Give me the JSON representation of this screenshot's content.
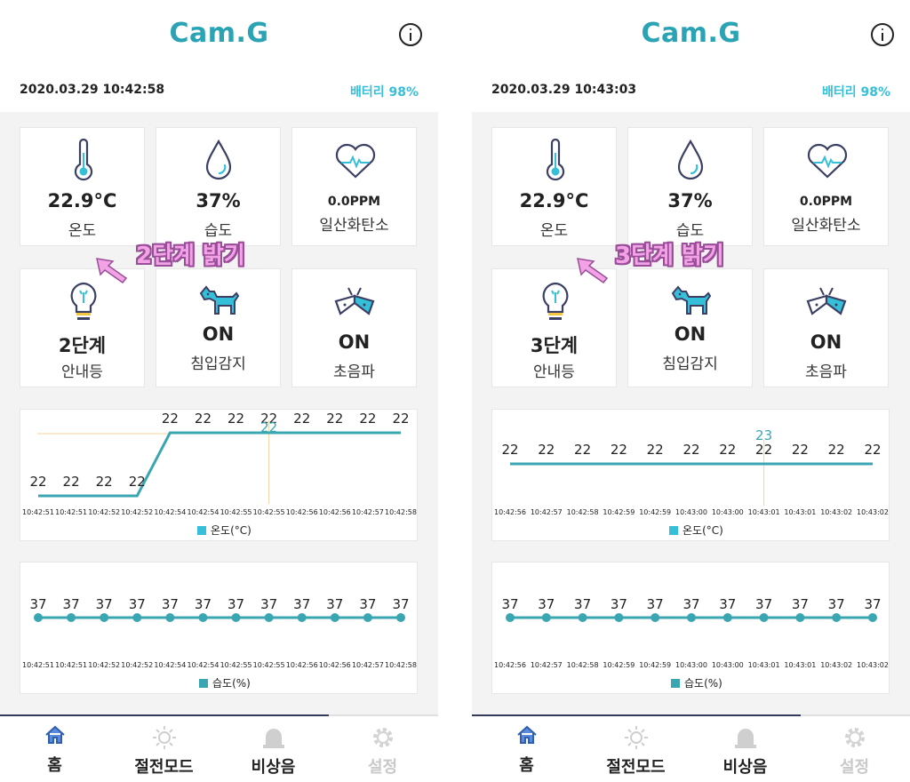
{
  "phones": [
    {
      "app_title": "Cam.G",
      "datetime": "2020.03.29 10:42:58",
      "battery": "배터리 98%",
      "tiles": {
        "temp": {
          "value": "22.9°C",
          "label": "온도"
        },
        "humid": {
          "value": "37%",
          "label": "습도"
        },
        "co": {
          "value": "0.0PPM",
          "label": "일산화탄소"
        },
        "light": {
          "value": "2단계",
          "label": "안내등"
        },
        "intrusion": {
          "value": "ON",
          "label": "침입감지"
        },
        "ultrasonic": {
          "value": "ON",
          "label": "초음파"
        }
      },
      "annotation": "2단계 밝기",
      "temp_chart": {
        "legend": "온도(°C)",
        "times": [
          "10:42:51",
          "10:42:51",
          "10:42:52",
          "10:42:52",
          "10:42:54",
          "10:42:54",
          "10:42:55",
          "10:42:55",
          "10:42:56",
          "10:42:56",
          "10:42:57",
          "10:42:58"
        ],
        "values": [
          22,
          22,
          22,
          22,
          22,
          22,
          22,
          22,
          22,
          22,
          22,
          22
        ],
        "levels": [
          22.0,
          22.0,
          22.0,
          22.0,
          22.9,
          22.9,
          22.9,
          22.9,
          22.9,
          22.9,
          22.9,
          22.9
        ],
        "highlight_label": "22",
        "highlight_index": 7
      },
      "humid_chart": {
        "legend": "습도(%)",
        "times": [
          "10:42:51",
          "10:42:51",
          "10:42:52",
          "10:42:52",
          "10:42:54",
          "10:42:54",
          "10:42:55",
          "10:42:55",
          "10:42:56",
          "10:42:56",
          "10:42:57",
          "10:42:58"
        ],
        "values": [
          37,
          37,
          37,
          37,
          37,
          37,
          37,
          37,
          37,
          37,
          37,
          37
        ]
      }
    },
    {
      "app_title": "Cam.G",
      "datetime": "2020.03.29 10:43:03",
      "battery": "배터리 98%",
      "tiles": {
        "temp": {
          "value": "22.9°C",
          "label": "온도"
        },
        "humid": {
          "value": "37%",
          "label": "습도"
        },
        "co": {
          "value": "0.0PPM",
          "label": "일산화탄소"
        },
        "light": {
          "value": "3단계",
          "label": "안내등"
        },
        "intrusion": {
          "value": "ON",
          "label": "침입감지"
        },
        "ultrasonic": {
          "value": "ON",
          "label": "초음파"
        }
      },
      "annotation": "3단계 밝기",
      "temp_chart": {
        "legend": "온도(°C)",
        "times": [
          "10:42:56",
          "10:42:57",
          "10:42:58",
          "10:42:59",
          "10:42:59",
          "10:43:00",
          "10:43:00",
          "10:43:01",
          "10:43:01",
          "10:43:02",
          "10:43:02"
        ],
        "values": [
          22,
          22,
          22,
          22,
          22,
          22,
          22,
          22,
          22,
          22,
          22
        ],
        "levels": [
          22.9,
          22.9,
          22.9,
          22.9,
          22.9,
          22.9,
          22.9,
          22.9,
          22.9,
          22.9,
          22.9
        ],
        "highlight_label": "23",
        "highlight_index": 7
      },
      "humid_chart": {
        "legend": "습도(%)",
        "times": [
          "10:42:56",
          "10:42:57",
          "10:42:58",
          "10:42:59",
          "10:42:59",
          "10:43:00",
          "10:43:00",
          "10:43:01",
          "10:43:01",
          "10:43:02",
          "10:43:02"
        ],
        "values": [
          37,
          37,
          37,
          37,
          37,
          37,
          37,
          37,
          37,
          37,
          37
        ]
      }
    }
  ],
  "nav": [
    {
      "label": "홈",
      "icon": "home-icon"
    },
    {
      "label": "절전모드",
      "icon": "sun-icon"
    },
    {
      "label": "비상음",
      "icon": "siren-icon"
    },
    {
      "label": "설정",
      "icon": "gear-icon"
    }
  ],
  "colors": {
    "accent": "#2aa3b4",
    "battery": "#35bfd8",
    "series": "#3aa6b1",
    "crosshair": "#f3d49c",
    "icon_blue": "#35bfd8",
    "icon_dark": "#3b3f64"
  }
}
